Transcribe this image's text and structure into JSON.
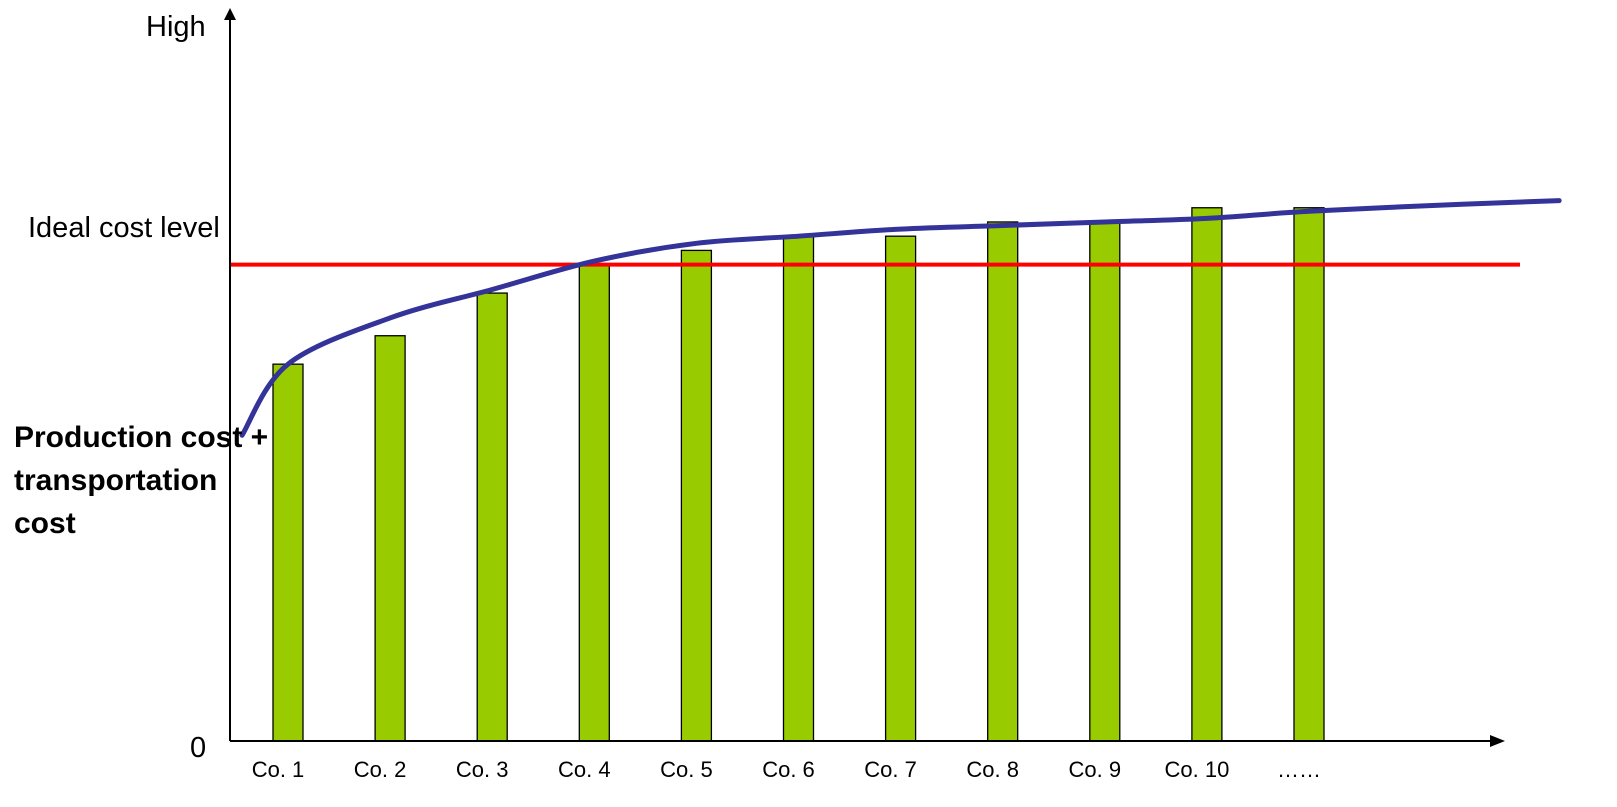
{
  "chart_data": {
    "type": "bar",
    "categories": [
      "Co. 1",
      "Co. 2",
      "Co. 3",
      "Co. 4",
      "Co. 5",
      "Co. 6",
      "Co. 7",
      "Co. 8",
      "Co. 9",
      "Co. 10",
      "……"
    ],
    "values": [
      53,
      57,
      63,
      67,
      69,
      71,
      71,
      73,
      73,
      75,
      75
    ],
    "title": "",
    "ylabel": "Production cost + transportation cost",
    "ylim": [
      0,
      100
    ],
    "y_ticks": {
      "low": "0",
      "high": "High"
    },
    "reference_line": {
      "label": "Ideal cost level",
      "value": 67,
      "color": "#ff0000"
    },
    "trend_curve": {
      "color": "#333399",
      "x": [
        -0.45,
        0,
        1,
        2,
        3,
        4,
        5,
        6,
        7,
        8,
        9,
        10,
        11.5,
        12.45
      ],
      "y": [
        43,
        53,
        59.5,
        63.5,
        67.5,
        70,
        71,
        72,
        72.5,
        73,
        73.5,
        74.5,
        75.5,
        76
      ]
    },
    "bar_color": "#99cc00",
    "axis_color": "#000000",
    "grid": false,
    "legend": "none"
  }
}
